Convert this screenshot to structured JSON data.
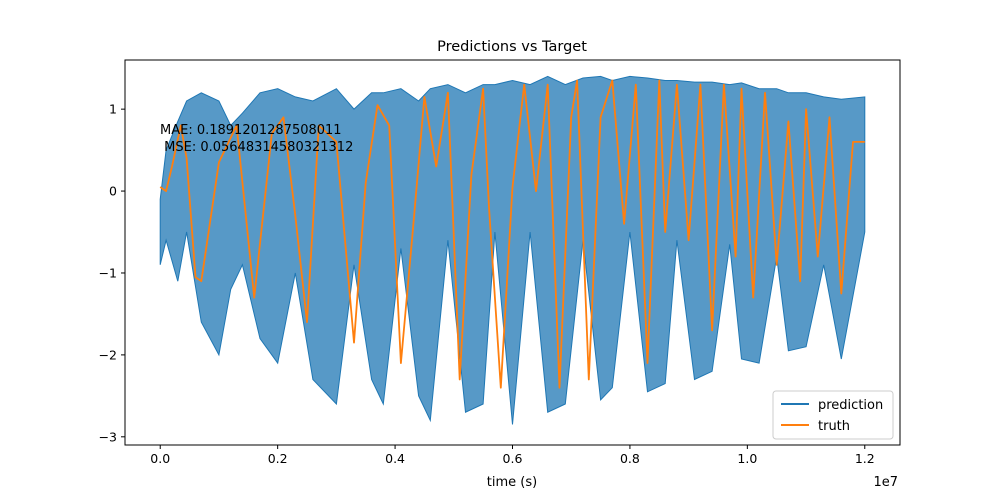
{
  "chart_data": {
    "type": "line",
    "title": "Predictions vs Target",
    "xlabel": "time (s)",
    "ylabel": "",
    "x_offset_label": "1e7",
    "xlim": [
      -0.06,
      1.26
    ],
    "ylim": [
      -3.1,
      1.6
    ],
    "x_ticks": [
      0.0,
      0.2,
      0.4,
      0.6,
      0.8,
      1.0,
      1.2
    ],
    "x_tick_labels": [
      "0.0",
      "0.2",
      "0.4",
      "0.6",
      "0.8",
      "1.0",
      "1.2"
    ],
    "y_ticks": [
      -3,
      -2,
      -1,
      0,
      1
    ],
    "y_tick_labels": [
      "−3",
      "−2",
      "−1",
      "0",
      "1"
    ],
    "annotation_lines": [
      "MAE: 0.1891201287508011",
      " MSE: 0.05648314580321312"
    ],
    "legend_position": "lower-right",
    "series": [
      {
        "name": "prediction",
        "color": "#1f77b4",
        "x": [
          0.0,
          0.01,
          0.03,
          0.045,
          0.07,
          0.1,
          0.12,
          0.14,
          0.17,
          0.2,
          0.23,
          0.26,
          0.3,
          0.33,
          0.36,
          0.38,
          0.41,
          0.44,
          0.46,
          0.49,
          0.52,
          0.55,
          0.57,
          0.6,
          0.63,
          0.66,
          0.69,
          0.72,
          0.75,
          0.77,
          0.8,
          0.83,
          0.86,
          0.88,
          0.91,
          0.94,
          0.97,
          0.99,
          1.02,
          1.05,
          1.07,
          1.1,
          1.13,
          1.16,
          1.2
        ],
        "upper": [
          -0.1,
          0.5,
          0.85,
          1.1,
          1.2,
          1.1,
          0.8,
          0.95,
          1.2,
          1.25,
          1.15,
          1.1,
          1.25,
          1.0,
          1.2,
          1.2,
          1.25,
          1.1,
          1.25,
          1.3,
          1.2,
          1.3,
          1.3,
          1.35,
          1.3,
          1.4,
          1.3,
          1.38,
          1.4,
          1.35,
          1.4,
          1.38,
          1.35,
          1.35,
          1.33,
          1.33,
          1.3,
          1.32,
          1.25,
          1.25,
          1.2,
          1.2,
          1.15,
          1.12,
          1.15
        ],
        "lower": [
          -0.9,
          -0.6,
          -1.1,
          -0.5,
          -1.6,
          -2.0,
          -1.2,
          -0.9,
          -1.8,
          -2.1,
          -1.0,
          -2.3,
          -2.6,
          -0.9,
          -2.3,
          -2.6,
          -0.7,
          -2.5,
          -2.8,
          -0.6,
          -2.7,
          -2.6,
          -0.5,
          -2.85,
          -0.5,
          -2.7,
          -2.6,
          -0.6,
          -2.55,
          -2.4,
          -0.5,
          -2.45,
          -2.35,
          -0.6,
          -2.3,
          -2.2,
          -0.65,
          -2.05,
          -2.1,
          -0.8,
          -1.95,
          -1.9,
          -0.9,
          -2.05,
          -0.5
        ]
      },
      {
        "name": "truth",
        "color": "#ff7f0e",
        "x": [
          0.0,
          0.01,
          0.02,
          0.035,
          0.045,
          0.06,
          0.07,
          0.1,
          0.13,
          0.16,
          0.19,
          0.21,
          0.23,
          0.25,
          0.27,
          0.3,
          0.33,
          0.35,
          0.37,
          0.39,
          0.41,
          0.43,
          0.45,
          0.47,
          0.49,
          0.51,
          0.53,
          0.55,
          0.56,
          0.58,
          0.6,
          0.62,
          0.64,
          0.66,
          0.68,
          0.7,
          0.71,
          0.73,
          0.75,
          0.77,
          0.79,
          0.81,
          0.83,
          0.85,
          0.86,
          0.88,
          0.9,
          0.92,
          0.94,
          0.96,
          0.98,
          0.99,
          1.01,
          1.03,
          1.05,
          1.07,
          1.09,
          1.1,
          1.12,
          1.14,
          1.16,
          1.18,
          1.2
        ],
        "y": [
          0.05,
          0.0,
          0.3,
          0.8,
          0.4,
          -1.05,
          -1.1,
          0.35,
          0.8,
          -1.3,
          0.7,
          0.9,
          -0.3,
          -1.6,
          0.8,
          0.6,
          -1.85,
          0.1,
          1.05,
          0.8,
          -2.1,
          -0.5,
          1.15,
          0.3,
          1.2,
          -2.3,
          0.2,
          1.25,
          -0.2,
          -2.4,
          0.05,
          1.3,
          0.0,
          1.3,
          -2.4,
          0.9,
          1.35,
          -2.3,
          0.9,
          1.35,
          -0.4,
          1.3,
          -2.1,
          1.35,
          -0.5,
          1.3,
          -0.6,
          1.3,
          -1.7,
          1.3,
          -0.8,
          1.25,
          -1.3,
          1.2,
          -0.9,
          0.85,
          -1.1,
          1.0,
          -0.8,
          0.9,
          -1.25,
          0.6,
          0.6
        ]
      }
    ]
  }
}
